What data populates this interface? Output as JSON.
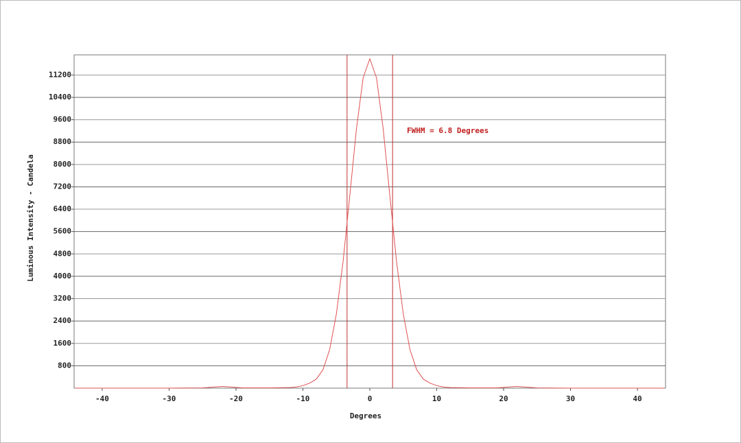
{
  "chart_data": {
    "type": "line",
    "xlabel": "Degrees",
    "ylabel": "Luminous Intensity - Candela",
    "annotation": "FWHM =  6.8 Degrees",
    "x": [
      -44,
      -40,
      -30,
      -25,
      -22,
      -19,
      -15,
      -12,
      -11,
      -10,
      -9,
      -8,
      -7,
      -6,
      -5,
      -4,
      -3,
      -2,
      -1,
      0,
      1,
      2,
      3,
      4,
      5,
      6,
      7,
      8,
      9,
      10,
      11,
      12,
      15,
      19,
      22,
      25,
      30,
      40,
      44
    ],
    "values": [
      0,
      0,
      0,
      10,
      60,
      10,
      10,
      20,
      40,
      90,
      180,
      320,
      660,
      1380,
      2650,
      4520,
      6870,
      9270,
      11100,
      11780,
      11100,
      9270,
      6870,
      4520,
      2650,
      1380,
      660,
      320,
      180,
      90,
      40,
      20,
      10,
      10,
      60,
      10,
      0,
      0,
      0
    ],
    "color": "#e05050",
    "fwhm_lines": [
      -3.4,
      3.4
    ],
    "xlim": [
      -44.2,
      44.2
    ],
    "ylim": [
      0,
      11920
    ],
    "xticks": [
      -40,
      -30,
      -20,
      -10,
      0,
      10,
      20,
      30,
      40
    ],
    "yticks": [
      800,
      1600,
      2400,
      3200,
      4000,
      4800,
      5600,
      6400,
      7200,
      8000,
      8800,
      9600,
      10400,
      11200
    ],
    "grid": true
  }
}
